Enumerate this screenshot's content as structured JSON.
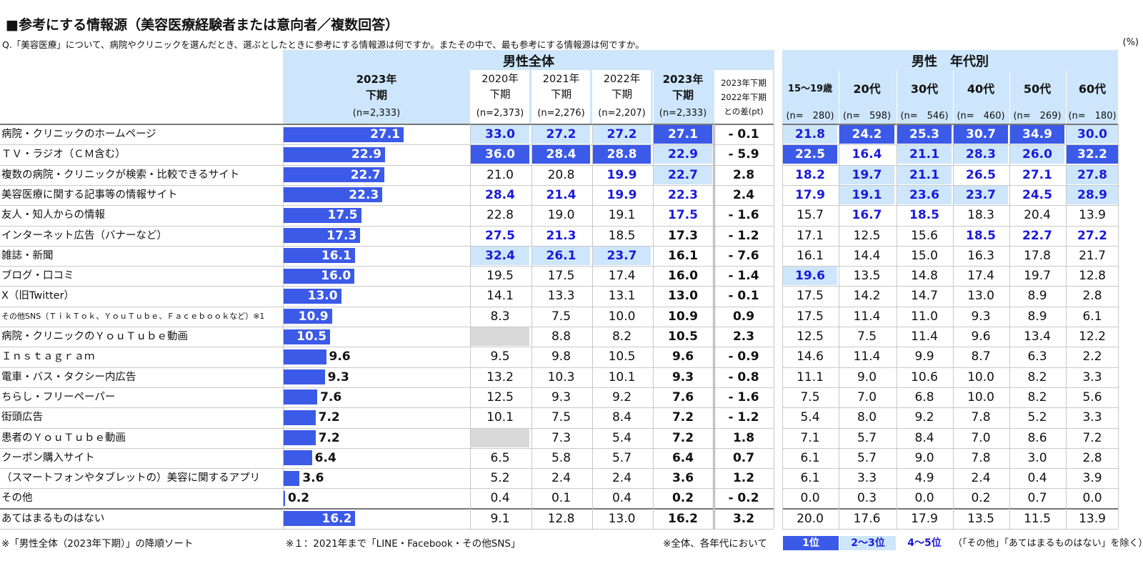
{
  "title": "■参考にする情報源（美容医療経験者または意向者／複数回答）",
  "question": "Q.「美容医療」について、病院やクリニックを選んだとき、選ぶとしたときに参考にする情報源は何ですか。またその中で、最も参考にする情報源は何ですか。",
  "unit": "(%)",
  "header": {
    "group_all": "男性全体",
    "group_age": "男性　年代別",
    "bar_col": {
      "line1": "2023年",
      "line2": "下期",
      "n": "(n=2,333)"
    },
    "period_cols": [
      {
        "line1": "2020年",
        "line2": "下期",
        "n": "(n=2,373)"
      },
      {
        "line1": "2021年",
        "line2": "下期",
        "n": "(n=2,276)"
      },
      {
        "line1": "2022年",
        "line2": "下期",
        "n": "(n=2,207)"
      },
      {
        "line1": "2023年",
        "line2": "下期",
        "n": "(n=2,333)"
      }
    ],
    "diff_col": {
      "line1": "2023年下期",
      "line2": "2022年下期",
      "line3": "との差(pt)"
    },
    "age_cols": [
      {
        "label": "15～19歳",
        "n": "(n=　280)"
      },
      {
        "label": "20代",
        "n": "(n=　598)"
      },
      {
        "label": "30代",
        "n": "(n=　546)"
      },
      {
        "label": "40代",
        "n": "(n=　460)"
      },
      {
        "label": "50代",
        "n": "(n=　269)"
      },
      {
        "label": "60代",
        "n": "(n=　180)"
      }
    ]
  },
  "chart_data": {
    "type": "bar",
    "orientation": "horizontal",
    "series": [
      {
        "values": [
          27.1,
          22.9,
          22.7,
          22.3,
          17.5,
          17.3,
          16.1,
          16.0,
          13.0,
          10.9,
          10.5,
          9.6,
          9.3,
          7.6,
          7.2,
          7.2,
          6.4,
          3.6,
          0.2,
          16.2
        ]
      }
    ],
    "categories": [
      "病院・クリニックのホームページ",
      "ＴＶ・ラジオ（ＣＭ含む）",
      "複数の病院・クリニックが検索・比較できるサイト",
      "美容医療に関する記事等の情報サイト",
      "友人・知人からの情報",
      "インターネット広告（バナーなど）",
      "雑誌・新聞",
      "ブログ・口コミ",
      "X（旧Twitter）",
      "その他SNS（ＴｉｋＴｏｋ、ＹｏｕＴｕｂｅ、Ｆａｃｅｂｏｏｋなど）※1",
      "病院・クリニックのＹｏｕＴｕｂｅ動画",
      "Ｉｎｓｔａｇｒａｍ",
      "電車・バス・タクシー内広告",
      "ちらし・フリーペーパー",
      "街頭広告",
      "患者のＹｏｕＴｕｂｅ動画",
      "クーポン購入サイト",
      "（スマートフォンやタブレットの）美容に関するアプリ",
      "その他",
      "あてはまるものはない"
    ],
    "table_rows": [
      {
        "periods": [
          "33.0",
          "27.2",
          "27.2",
          "27.1"
        ],
        "prank": [
          2,
          2,
          2,
          1
        ],
        "diff": "- 0.1",
        "ages": [
          "21.8",
          "24.2",
          "25.3",
          "30.7",
          "34.9",
          "30.0"
        ],
        "arank": [
          2,
          1,
          1,
          1,
          1,
          2
        ]
      },
      {
        "periods": [
          "36.0",
          "28.4",
          "28.8",
          "22.9"
        ],
        "prank": [
          1,
          1,
          1,
          2
        ],
        "diff": "- 5.9",
        "ages": [
          "22.5",
          "16.4",
          "21.1",
          "28.3",
          "26.0",
          "32.2"
        ],
        "arank": [
          1,
          4,
          2,
          2,
          2,
          1
        ]
      },
      {
        "periods": [
          "21.0",
          "20.8",
          "19.9",
          "22.7"
        ],
        "prank": [
          0,
          0,
          4,
          2
        ],
        "diff": "2.8",
        "ages": [
          "18.2",
          "19.7",
          "21.1",
          "26.5",
          "27.1",
          "27.8"
        ],
        "arank": [
          4,
          2,
          2,
          4,
          4,
          2
        ]
      },
      {
        "periods": [
          "28.4",
          "21.4",
          "19.9",
          "22.3"
        ],
        "prank": [
          4,
          4,
          4,
          4
        ],
        "diff": "2.4",
        "ages": [
          "17.9",
          "19.1",
          "23.6",
          "23.7",
          "24.5",
          "28.9"
        ],
        "arank": [
          4,
          2,
          2,
          2,
          4,
          2
        ]
      },
      {
        "periods": [
          "22.8",
          "19.0",
          "19.1",
          "17.5"
        ],
        "prank": [
          0,
          0,
          0,
          4
        ],
        "diff": "- 1.6",
        "ages": [
          "15.7",
          "16.7",
          "18.5",
          "18.3",
          "20.4",
          "13.9"
        ],
        "arank": [
          0,
          4,
          4,
          0,
          0,
          0
        ]
      },
      {
        "periods": [
          "27.5",
          "21.3",
          "18.5",
          "17.3"
        ],
        "prank": [
          4,
          4,
          0,
          5
        ],
        "diff": "- 1.2",
        "ages": [
          "17.1",
          "12.5",
          "15.6",
          "18.5",
          "22.7",
          "27.2"
        ],
        "arank": [
          0,
          0,
          0,
          4,
          4,
          4
        ]
      },
      {
        "periods": [
          "32.4",
          "26.1",
          "23.7",
          "16.1"
        ],
        "prank": [
          2,
          2,
          2,
          5
        ],
        "diff": "- 7.6",
        "ages": [
          "16.1",
          "14.4",
          "15.0",
          "16.3",
          "17.8",
          "21.7"
        ],
        "arank": [
          0,
          0,
          0,
          0,
          0,
          0
        ]
      },
      {
        "periods": [
          "19.5",
          "17.5",
          "17.4",
          "16.0"
        ],
        "prank": [
          0,
          0,
          0,
          5
        ],
        "diff": "- 1.4",
        "ages": [
          "19.6",
          "13.5",
          "14.8",
          "17.4",
          "19.7",
          "12.8"
        ],
        "arank": [
          2,
          0,
          0,
          0,
          0,
          0
        ]
      },
      {
        "periods": [
          "14.1",
          "13.3",
          "13.1",
          "13.0"
        ],
        "prank": [
          0,
          0,
          0,
          5
        ],
        "diff": "- 0.1",
        "ages": [
          "17.5",
          "14.2",
          "14.7",
          "13.0",
          "8.9",
          "2.8"
        ],
        "arank": [
          0,
          0,
          0,
          0,
          0,
          0
        ]
      },
      {
        "periods": [
          "8.3",
          "7.5",
          "10.0",
          "10.9"
        ],
        "prank": [
          0,
          0,
          0,
          5
        ],
        "diff": "0.9",
        "ages": [
          "17.5",
          "11.4",
          "11.0",
          "9.3",
          "8.9",
          "6.1"
        ],
        "arank": [
          0,
          0,
          0,
          0,
          0,
          0
        ]
      },
      {
        "periods": [
          "",
          "8.8",
          "8.2",
          "10.5"
        ],
        "prank": [
          -1,
          0,
          0,
          5
        ],
        "diff": "2.3",
        "ages": [
          "12.5",
          "7.5",
          "11.4",
          "9.6",
          "13.4",
          "12.2"
        ],
        "arank": [
          0,
          0,
          0,
          0,
          0,
          0
        ]
      },
      {
        "periods": [
          "9.5",
          "9.8",
          "10.5",
          "9.6"
        ],
        "prank": [
          0,
          0,
          0,
          5
        ],
        "diff": "- 0.9",
        "ages": [
          "14.6",
          "11.4",
          "9.9",
          "8.7",
          "6.3",
          "2.2"
        ],
        "arank": [
          0,
          0,
          0,
          0,
          0,
          0
        ]
      },
      {
        "periods": [
          "13.2",
          "10.3",
          "10.1",
          "9.3"
        ],
        "prank": [
          0,
          0,
          0,
          5
        ],
        "diff": "- 0.8",
        "ages": [
          "11.1",
          "9.0",
          "10.6",
          "10.0",
          "8.2",
          "3.3"
        ],
        "arank": [
          0,
          0,
          0,
          0,
          0,
          0
        ]
      },
      {
        "periods": [
          "12.5",
          "9.3",
          "9.2",
          "7.6"
        ],
        "prank": [
          0,
          0,
          0,
          5
        ],
        "diff": "- 1.6",
        "ages": [
          "7.5",
          "7.0",
          "6.8",
          "10.0",
          "8.2",
          "5.6"
        ],
        "arank": [
          0,
          0,
          0,
          0,
          0,
          0
        ]
      },
      {
        "periods": [
          "10.1",
          "7.5",
          "8.4",
          "7.2"
        ],
        "prank": [
          0,
          0,
          0,
          5
        ],
        "diff": "- 1.2",
        "ages": [
          "5.4",
          "8.0",
          "9.2",
          "7.8",
          "5.2",
          "3.3"
        ],
        "arank": [
          0,
          0,
          0,
          0,
          0,
          0
        ]
      },
      {
        "periods": [
          "",
          "7.3",
          "5.4",
          "7.2"
        ],
        "prank": [
          -1,
          0,
          0,
          5
        ],
        "diff": "1.8",
        "ages": [
          "7.1",
          "5.7",
          "8.4",
          "7.0",
          "8.6",
          "7.2"
        ],
        "arank": [
          0,
          0,
          0,
          0,
          0,
          0
        ]
      },
      {
        "periods": [
          "6.5",
          "5.8",
          "5.7",
          "6.4"
        ],
        "prank": [
          0,
          0,
          0,
          5
        ],
        "diff": "0.7",
        "ages": [
          "6.1",
          "5.7",
          "9.0",
          "7.8",
          "3.0",
          "2.8"
        ],
        "arank": [
          0,
          0,
          0,
          0,
          0,
          0
        ]
      },
      {
        "periods": [
          "5.2",
          "2.4",
          "2.4",
          "3.6"
        ],
        "prank": [
          0,
          0,
          0,
          5
        ],
        "diff": "1.2",
        "ages": [
          "6.1",
          "3.3",
          "4.9",
          "2.4",
          "0.4",
          "3.9"
        ],
        "arank": [
          0,
          0,
          0,
          0,
          0,
          0
        ]
      },
      {
        "periods": [
          "0.4",
          "0.1",
          "0.4",
          "0.2"
        ],
        "prank": [
          0,
          0,
          0,
          5
        ],
        "diff": "- 0.2",
        "ages": [
          "0.0",
          "0.3",
          "0.0",
          "0.2",
          "0.7",
          "0.0"
        ],
        "arank": [
          0,
          0,
          0,
          0,
          0,
          0
        ]
      },
      {
        "periods": [
          "9.1",
          "12.8",
          "13.0",
          "16.2"
        ],
        "prank": [
          0,
          0,
          0,
          5
        ],
        "diff": "3.2",
        "ages": [
          "20.0",
          "17.6",
          "17.9",
          "13.5",
          "11.5",
          "13.9"
        ],
        "arank": [
          0,
          0,
          0,
          0,
          0,
          0
        ]
      }
    ]
  },
  "footer": {
    "sort_note": "※「男性全体（2023年下期）」の降順ソート",
    "note1": "※１：2021年まで「LINE・Facebook・その他SNS」",
    "note2": "※全体、各年代において",
    "legend_rank1": "1位",
    "legend_rank2": "2～3位",
    "legend_rank4": "4～5位",
    "legend_exclusion": "（「その他」「あてはまるものはない」を除く）"
  },
  "colors": {
    "rank1": "#3c5ae8",
    "rank2_3": "#cde6fb",
    "rank4_5_text": "#1a1adb",
    "bar": "#3c5ae8",
    "header": "#cde6fb"
  }
}
